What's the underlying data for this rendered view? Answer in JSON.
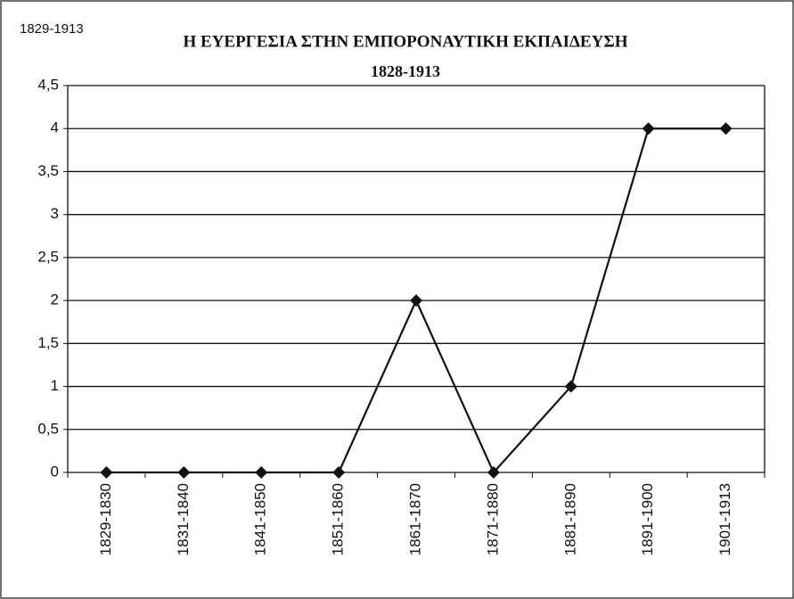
{
  "chart_data": {
    "type": "line",
    "title": "Η ΕΥΕΡΓΕΣΙΑ ΣΤΗΝ ΕΜΠΟΡΟΝΑΥΤΙΚΗ ΕΚΠΑΙΔΕΥΣΗ",
    "subtitle": "1828-1913",
    "annotation": "1829-1913",
    "categories": [
      "1829-1830",
      "1831-1840",
      "1841-1850",
      "1851-1860",
      "1861-1870",
      "1871-1880",
      "1881-1890",
      "1891-1900",
      "1901-1913"
    ],
    "values": [
      0,
      0,
      0,
      0,
      2,
      0,
      1,
      4,
      4
    ],
    "color": "#111111",
    "ylim": [
      0,
      4.5
    ],
    "yticks": [
      0,
      {
        "value": 0.5,
        "label": "0,5"
      },
      1,
      {
        "value": 1.5,
        "label": "1,5"
      },
      2,
      {
        "value": 2.5,
        "label": "2,5"
      },
      3,
      {
        "value": 3.5,
        "label": "3,5"
      },
      4,
      {
        "value": 4.5,
        "label": "4,5"
      }
    ],
    "grid": true
  }
}
